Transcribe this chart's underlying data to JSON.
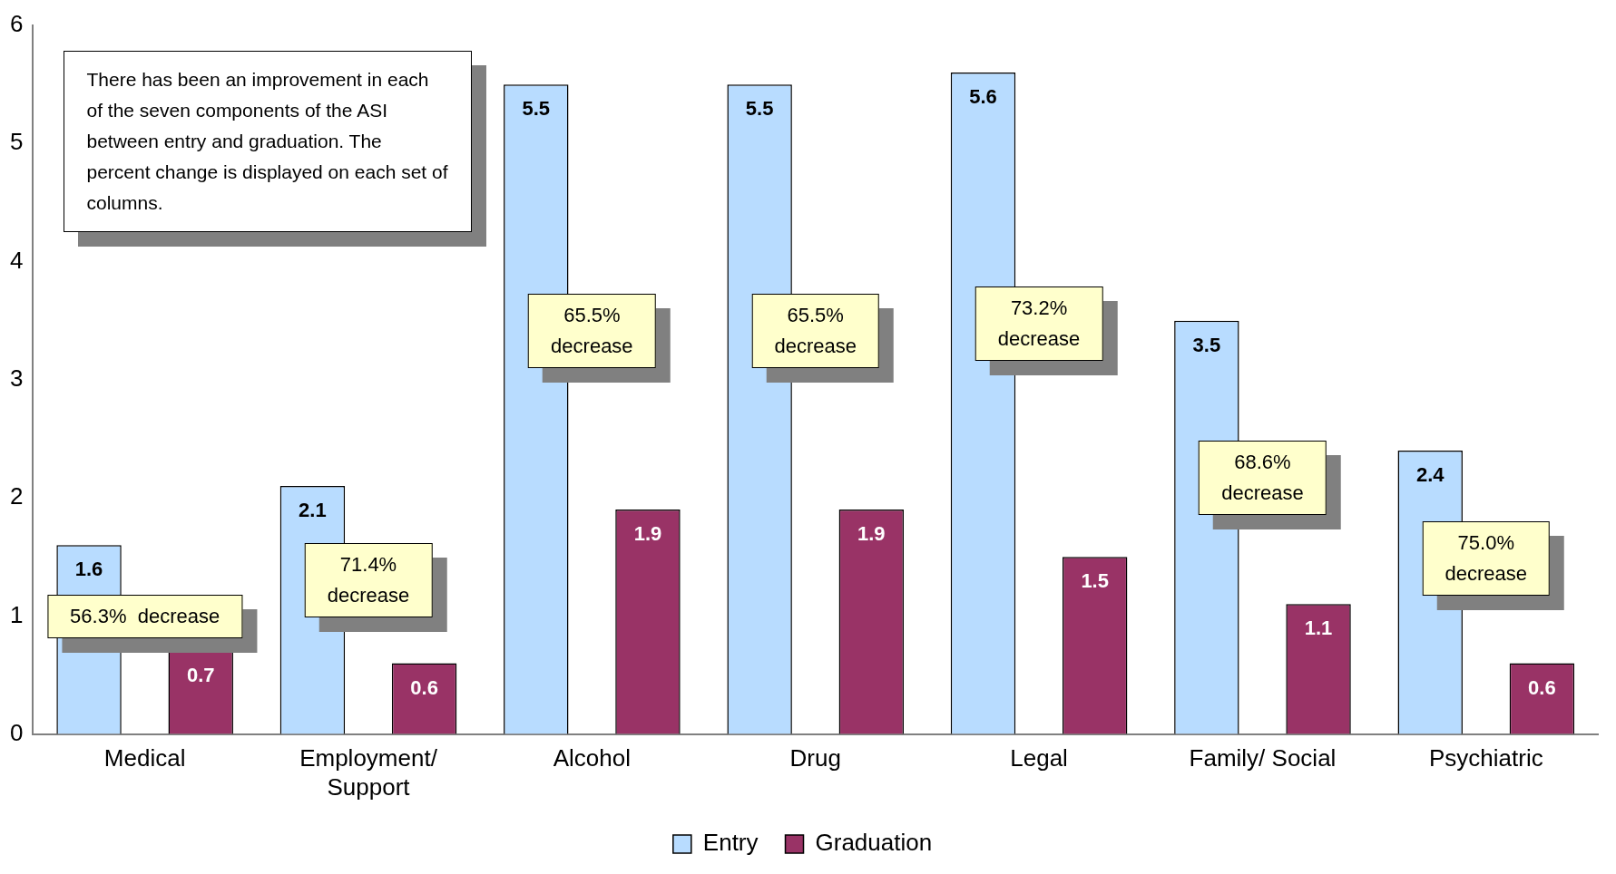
{
  "chart_data": {
    "type": "bar",
    "categories": [
      "Medical",
      "Employment/ Support",
      "Alcohol",
      "Drug",
      "Legal",
      "Family/ Social",
      "Psychiatric"
    ],
    "series": [
      {
        "name": "Entry",
        "color": "#b8dcff",
        "values": [
          1.6,
          2.1,
          5.5,
          5.5,
          5.6,
          3.5,
          2.4
        ]
      },
      {
        "name": "Graduation",
        "color": "#993366",
        "values": [
          0.7,
          0.6,
          1.9,
          1.9,
          1.5,
          1.1,
          0.6
        ]
      }
    ],
    "ylim": [
      0,
      6
    ],
    "yticks": [
      0,
      1,
      2,
      3,
      4,
      5,
      6
    ],
    "grid": false,
    "legend": "bottom",
    "data_labels": true,
    "annotations": [
      "There has been an improvement in each of the seven components of the ASI between entry and graduation.  The percent change is displayed on each set of columns.",
      "56.3%  decrease",
      "71.4%\ndecrease",
      "65.5%\ndecrease",
      "65.5%\ndecrease",
      "73.2%\ndecrease",
      "68.6%\ndecrease",
      "75.0%\ndecrease"
    ]
  }
}
